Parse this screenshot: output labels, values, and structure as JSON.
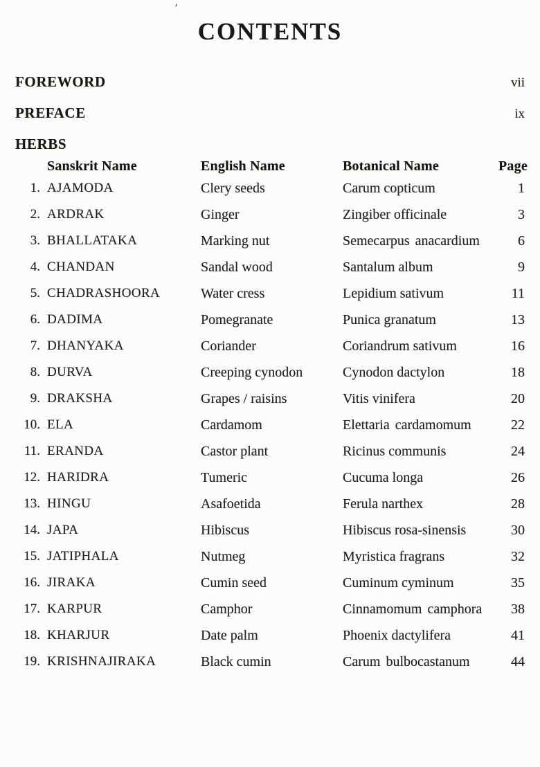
{
  "page": {
    "title": "CONTENTS",
    "stray_mark": "’"
  },
  "front_matter": [
    {
      "label": "FOREWORD",
      "page": "vii"
    },
    {
      "label": "PREFACE",
      "page": "ix"
    }
  ],
  "herbs_heading": "HERBS",
  "table": {
    "headers": {
      "sanskrit": "Sanskrit Name",
      "english": "English Name",
      "botanical": "Botanical Name",
      "page": "Page"
    },
    "rows": [
      {
        "num": "1.",
        "sanskrit": "AJAMODA",
        "english": "Clery seeds",
        "botanical": "Carum copticum",
        "botanical2": "",
        "page": "1"
      },
      {
        "num": "2.",
        "sanskrit": "ARDRAK",
        "english": "Ginger",
        "botanical": "Zingiber officinale",
        "botanical2": "",
        "page": "3"
      },
      {
        "num": "3.",
        "sanskrit": "BHALLATAKA",
        "english": "Marking nut",
        "botanical": "Semecarpus",
        "botanical2": "anacardium",
        "page": "6"
      },
      {
        "num": "4.",
        "sanskrit": "CHANDAN",
        "english": "Sandal wood",
        "botanical": "Santalum album",
        "botanical2": "",
        "page": "9"
      },
      {
        "num": "5.",
        "sanskrit": "CHADRASHOORA",
        "english": "Water cress",
        "botanical": "Lepidium sativum",
        "botanical2": "",
        "page": "11"
      },
      {
        "num": "6.",
        "sanskrit": "DADIMA",
        "english": "Pomegranate",
        "botanical": "Punica granatum",
        "botanical2": "",
        "page": "13"
      },
      {
        "num": "7.",
        "sanskrit": "DHANYAKA",
        "english": "Coriander",
        "botanical": "Coriandrum sativum",
        "botanical2": "",
        "page": "16"
      },
      {
        "num": "8.",
        "sanskrit": "DURVA",
        "english": "Creeping cynodon",
        "botanical": "Cynodon dactylon",
        "botanical2": "",
        "page": "18"
      },
      {
        "num": "9.",
        "sanskrit": "DRAKSHA",
        "english": "Grapes / raisins",
        "botanical": "Vitis vinifera",
        "botanical2": "",
        "page": "20"
      },
      {
        "num": "10.",
        "sanskrit": "ELA",
        "english": "Cardamom",
        "botanical": "Elettaria",
        "botanical2": "cardamomum",
        "page": "22"
      },
      {
        "num": "11.",
        "sanskrit": "ERANDA",
        "english": "Castor plant",
        "botanical": "Ricinus communis",
        "botanical2": "",
        "page": "24"
      },
      {
        "num": "12.",
        "sanskrit": "HARIDRA",
        "english": "Tumeric",
        "botanical": "Cucuma longa",
        "botanical2": "",
        "page": "26"
      },
      {
        "num": "13.",
        "sanskrit": "HINGU",
        "english": "Asafoetida",
        "botanical": "Ferula narthex",
        "botanical2": "",
        "page": "28"
      },
      {
        "num": "14.",
        "sanskrit": "JAPA",
        "english": "Hibiscus",
        "botanical": "Hibiscus rosa-sinensis",
        "botanical2": "",
        "page": "30"
      },
      {
        "num": "15.",
        "sanskrit": "JATIPHALA",
        "english": "Nutmeg",
        "botanical": "Myristica fragrans",
        "botanical2": "",
        "page": "32"
      },
      {
        "num": "16.",
        "sanskrit": "JIRAKA",
        "english": "Cumin seed",
        "botanical": "Cuminum cyminum",
        "botanical2": "",
        "page": "35"
      },
      {
        "num": "17.",
        "sanskrit": "KARPUR",
        "english": "Camphor",
        "botanical": "Cinnamomum",
        "botanical2": "camphora",
        "page": "38"
      },
      {
        "num": "18.",
        "sanskrit": "KHARJUR",
        "english": "Date palm",
        "botanical": "Phoenix dactylifera",
        "botanical2": "",
        "page": "41"
      },
      {
        "num": "19.",
        "sanskrit": "KRISHNAJIRAKA",
        "english": "Black cumin",
        "botanical": "Carum",
        "botanical2": "bulbocastanum",
        "page": "44"
      }
    ]
  }
}
